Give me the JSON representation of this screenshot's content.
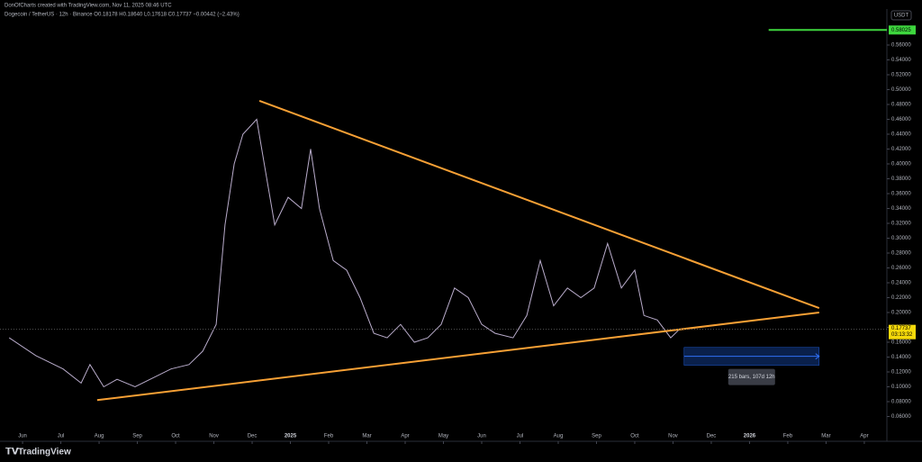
{
  "chart_data": {
    "type": "line",
    "title": "DonOfCharts created with TradingView.com, Nov 11, 2025 08:46 UTC",
    "subtitle": "Dogecoin / TetherUS · 12h · Binance  O0.18178 H0.18640 L0.17618 C0.17737 −0.00442 (−2.43%)",
    "currency": "USDT",
    "brand": "TradingView",
    "series": [
      {
        "name": "DOGEUSDT",
        "color": "#b9accb",
        "x": [
          -0.35,
          0.35,
          1.06,
          1.53,
          1.76,
          2.12,
          2.47,
          2.94,
          3.41,
          3.88,
          4.35,
          4.71,
          5.06,
          5.29,
          5.53,
          5.76,
          6.12,
          6.35,
          6.59,
          6.94,
          7.29,
          7.53,
          7.76,
          8.12,
          8.47,
          8.82,
          9.18,
          9.53,
          9.88,
          10.24,
          10.59,
          10.94,
          11.29,
          11.65,
          12.0,
          12.35,
          12.82,
          13.18,
          13.53,
          13.88,
          14.24,
          14.59,
          14.94,
          15.29,
          15.65,
          16.0,
          16.24,
          16.59,
          16.94,
          17.18
        ],
        "values": [
          0.166,
          0.142,
          0.124,
          0.105,
          0.13,
          0.1,
          0.11,
          0.1,
          0.112,
          0.124,
          0.13,
          0.148,
          0.184,
          0.318,
          0.4,
          0.44,
          0.46,
          0.39,
          0.318,
          0.355,
          0.34,
          0.42,
          0.34,
          0.27,
          0.257,
          0.22,
          0.172,
          0.166,
          0.184,
          0.16,
          0.166,
          0.184,
          0.233,
          0.22,
          0.184,
          0.172,
          0.166,
          0.196,
          0.27,
          0.209,
          0.233,
          0.22,
          0.233,
          0.293,
          0.233,
          0.257,
          0.196,
          0.19,
          0.166,
          0.178
        ]
      }
    ],
    "trendlines": [
      {
        "x": [
          6.19,
          20.82
        ],
        "values": [
          0.485,
          0.206
        ],
        "color": "#f7a035"
      },
      {
        "x": [
          1.95,
          20.82
        ],
        "values": [
          0.082,
          0.2
        ],
        "color": "#f7a035"
      }
    ],
    "level": {
      "x": [
        19.5,
        22.59
      ],
      "value": 0.58025,
      "color": "#3ed63e"
    },
    "last_price": {
      "value": 0.17737,
      "countdown": "03:13:32",
      "color": "#f5d90a"
    },
    "range": {
      "x": [
        17.29,
        20.82
      ],
      "values": [
        0.153,
        0.129
      ],
      "label": "215 bars, 107d 12h",
      "color": "#1e5bd6"
    },
    "xlim": [
      -0.59,
      22.59
    ],
    "ylim": [
      0.0303,
      0.6085
    ],
    "xticks": [
      {
        "value": 0,
        "label": "Jun"
      },
      {
        "value": 1,
        "label": "Jul"
      },
      {
        "value": 2,
        "label": "Aug"
      },
      {
        "value": 3,
        "label": "Sep"
      },
      {
        "value": 4,
        "label": "Oct"
      },
      {
        "value": 5,
        "label": "Nov"
      },
      {
        "value": 6,
        "label": "Dec"
      },
      {
        "value": 7,
        "label": "2025"
      },
      {
        "value": 8,
        "label": "Feb"
      },
      {
        "value": 9,
        "label": "Mar"
      },
      {
        "value": 10,
        "label": "Apr"
      },
      {
        "value": 11,
        "label": "May"
      },
      {
        "value": 12,
        "label": "Jun"
      },
      {
        "value": 13,
        "label": "Jul"
      },
      {
        "value": 14,
        "label": "Aug"
      },
      {
        "value": 15,
        "label": "Sep"
      },
      {
        "value": 16,
        "label": "Oct"
      },
      {
        "value": 17,
        "label": "Nov"
      },
      {
        "value": 18,
        "label": "Dec"
      },
      {
        "value": 19,
        "label": "2026"
      },
      {
        "value": 20,
        "label": "Feb"
      },
      {
        "value": 21,
        "label": "Mar"
      },
      {
        "value": 22,
        "label": "Apr"
      }
    ],
    "yticks": [
      {
        "value": 0.06,
        "label": "0.06000"
      },
      {
        "value": 0.08,
        "label": "0.08000"
      },
      {
        "value": 0.1,
        "label": "0.10000"
      },
      {
        "value": 0.12,
        "label": "0.12000"
      },
      {
        "value": 0.14,
        "label": "0.14000"
      },
      {
        "value": 0.16,
        "label": "0.16000"
      },
      {
        "value": 0.18,
        "label": "0.18000"
      },
      {
        "value": 0.2,
        "label": "0.20000"
      },
      {
        "value": 0.22,
        "label": "0.22000"
      },
      {
        "value": 0.24,
        "label": "0.24000"
      },
      {
        "value": 0.26,
        "label": "0.26000"
      },
      {
        "value": 0.28,
        "label": "0.28000"
      },
      {
        "value": 0.3,
        "label": "0.30000"
      },
      {
        "value": 0.32,
        "label": "0.32000"
      },
      {
        "value": 0.34,
        "label": "0.34000"
      },
      {
        "value": 0.36,
        "label": "0.36000"
      },
      {
        "value": 0.38,
        "label": "0.38000"
      },
      {
        "value": 0.4,
        "label": "0.40000"
      },
      {
        "value": 0.42,
        "label": "0.42000"
      },
      {
        "value": 0.44,
        "label": "0.44000"
      },
      {
        "value": 0.46,
        "label": "0.46000"
      },
      {
        "value": 0.48,
        "label": "0.48000"
      },
      {
        "value": 0.5,
        "label": "0.50000"
      },
      {
        "value": 0.52,
        "label": "0.52000"
      },
      {
        "value": 0.54,
        "label": "0.54000"
      },
      {
        "value": 0.56,
        "label": "0.56000"
      }
    ]
  }
}
